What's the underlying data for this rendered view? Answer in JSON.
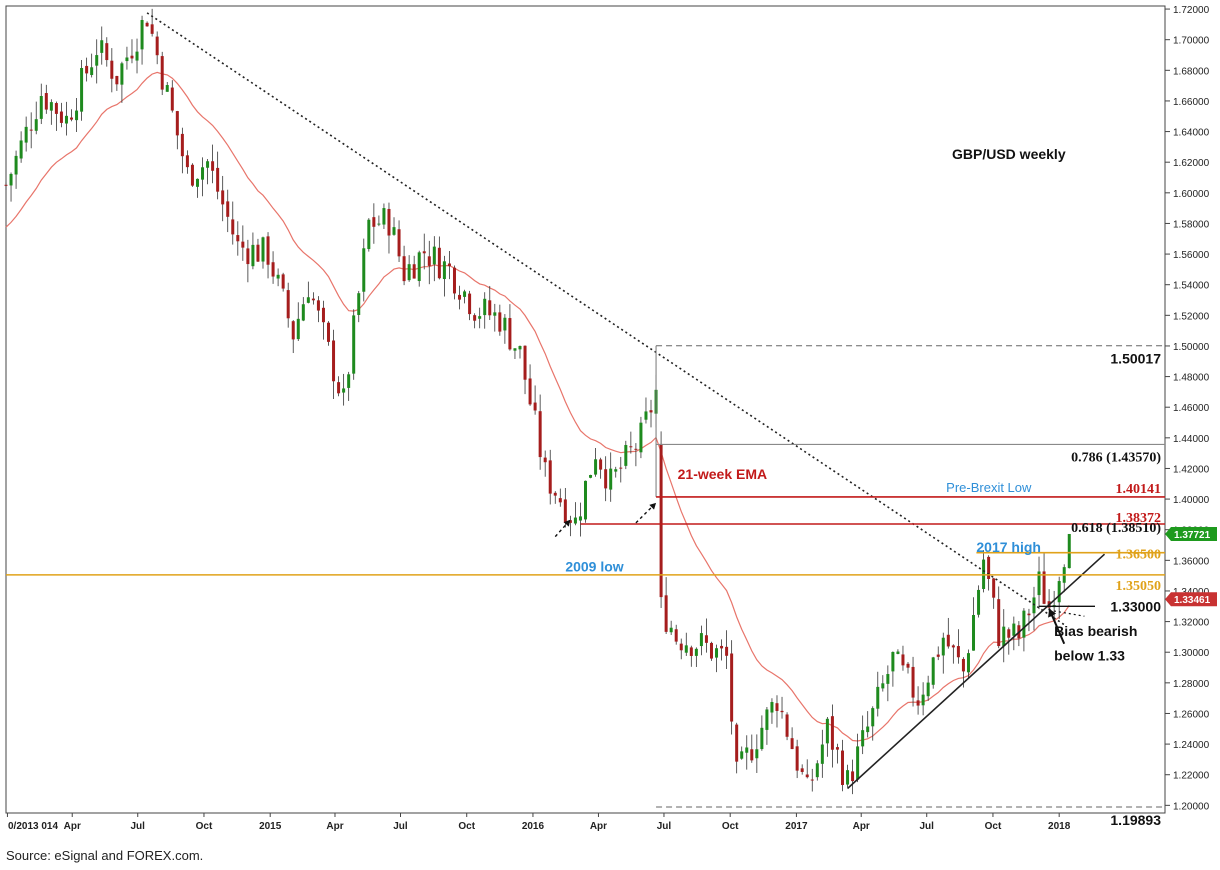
{
  "colors": {
    "up": "#1e8a1e",
    "down": "#a51d1d",
    "ema": "#e8756b",
    "trendline": "#222222",
    "fib_grey": "#8a8a8a",
    "red_level": "#c21a1a",
    "orange_level": "#e0a21a",
    "blue_text": "#2f8fd8",
    "green_badge": "#1e9a1e",
    "red_badge": "#c83232",
    "axis_text": "#222222"
  },
  "chart_data": {
    "type": "candlestick",
    "title": "GBP/USD weekly",
    "xlabel": "",
    "ylabel": "",
    "ylim": [
      1.195,
      1.722
    ],
    "y_ticks": [
      1.72,
      1.7,
      1.68,
      1.66,
      1.64,
      1.62,
      1.6,
      1.58,
      1.56,
      1.54,
      1.52,
      1.5,
      1.48,
      1.46,
      1.44,
      1.42,
      1.4,
      1.38,
      1.36,
      1.34,
      1.32,
      1.3,
      1.28,
      1.26,
      1.24,
      1.22,
      1.2
    ],
    "y_tick_labels": [
      "1.72000",
      "1.70000",
      "1.68000",
      "1.66000",
      "1.64000",
      "1.62000",
      "1.60000",
      "1.58000",
      "1.56000",
      "1.54000",
      "1.52000",
      "1.50000",
      "1.48000",
      "1.46000",
      "1.44000",
      "1.42000",
      "1.40000",
      "1.38000",
      "1.36000",
      "1.34000",
      "1.32000",
      "1.30000",
      "1.28000",
      "1.26000",
      "1.24000",
      "1.22000",
      "1.20000"
    ],
    "x_range": [
      "2013-12-30",
      "2018-05-28"
    ],
    "x_ticks": [
      {
        "label": "0/2013 014",
        "date": "2014-01-01"
      },
      {
        "label": "Apr",
        "date": "2014-04-01"
      },
      {
        "label": "Jul",
        "date": "2014-07-01"
      },
      {
        "label": "Oct",
        "date": "2014-10-01"
      },
      {
        "label": "2015",
        "date": "2015-01-01"
      },
      {
        "label": "Apr",
        "date": "2015-04-01"
      },
      {
        "label": "Jul",
        "date": "2015-07-01"
      },
      {
        "label": "Oct",
        "date": "2015-10-01"
      },
      {
        "label": "2016",
        "date": "2016-01-01"
      },
      {
        "label": "Apr",
        "date": "2016-04-01"
      },
      {
        "label": "Jul",
        "date": "2016-07-01"
      },
      {
        "label": "Oct",
        "date": "2016-10-01"
      },
      {
        "label": "2017",
        "date": "2017-01-01"
      },
      {
        "label": "Apr",
        "date": "2017-04-01"
      },
      {
        "label": "Jul",
        "date": "2017-07-01"
      },
      {
        "label": "Oct",
        "date": "2017-10-01"
      },
      {
        "label": "2018",
        "date": "2018-01-01"
      }
    ],
    "price_path": [
      {
        "date": "2013-12-30",
        "close": 1.605
      },
      {
        "date": "2014-02-17",
        "close": 1.665
      },
      {
        "date": "2014-03-24",
        "close": 1.648
      },
      {
        "date": "2014-05-05",
        "close": 1.695
      },
      {
        "date": "2014-06-02",
        "close": 1.676
      },
      {
        "date": "2014-07-14",
        "close": 1.716
      },
      {
        "date": "2014-09-08",
        "close": 1.612
      },
      {
        "date": "2014-10-06",
        "close": 1.62
      },
      {
        "date": "2014-11-17",
        "close": 1.565
      },
      {
        "date": "2014-12-29",
        "close": 1.56
      },
      {
        "date": "2015-02-02",
        "close": 1.508
      },
      {
        "date": "2015-02-23",
        "close": 1.54
      },
      {
        "date": "2015-04-13",
        "close": 1.463
      },
      {
        "date": "2015-05-18",
        "close": 1.58
      },
      {
        "date": "2015-06-15",
        "close": 1.582
      },
      {
        "date": "2015-07-06",
        "close": 1.548
      },
      {
        "date": "2015-08-03",
        "close": 1.562
      },
      {
        "date": "2015-09-07",
        "close": 1.55
      },
      {
        "date": "2015-10-12",
        "close": 1.525
      },
      {
        "date": "2015-11-16",
        "close": 1.518
      },
      {
        "date": "2015-12-14",
        "close": 1.495
      },
      {
        "date": "2016-01-18",
        "close": 1.416
      },
      {
        "date": "2016-02-29",
        "close": 1.385
      },
      {
        "date": "2016-03-28",
        "close": 1.432
      },
      {
        "date": "2016-04-18",
        "close": 1.41
      },
      {
        "date": "2016-05-30",
        "close": 1.44
      },
      {
        "date": "2016-06-20",
        "close": 1.47
      },
      {
        "date": "2016-06-27",
        "close": 1.33
      },
      {
        "date": "2016-07-18",
        "close": 1.31
      },
      {
        "date": "2016-08-22",
        "close": 1.305
      },
      {
        "date": "2016-09-26",
        "close": 1.296
      },
      {
        "date": "2016-10-10",
        "close": 1.218
      },
      {
        "date": "2016-11-07",
        "close": 1.245
      },
      {
        "date": "2016-12-05",
        "close": 1.27
      },
      {
        "date": "2017-01-16",
        "close": 1.208
      },
      {
        "date": "2017-02-13",
        "close": 1.25
      },
      {
        "date": "2017-03-13",
        "close": 1.215
      },
      {
        "date": "2017-04-10",
        "close": 1.25
      },
      {
        "date": "2017-05-15",
        "close": 1.295
      },
      {
        "date": "2017-06-19",
        "close": 1.27
      },
      {
        "date": "2017-07-24",
        "close": 1.31
      },
      {
        "date": "2017-08-21",
        "close": 1.287
      },
      {
        "date": "2017-09-18",
        "close": 1.361
      },
      {
        "date": "2017-10-09",
        "close": 1.312
      },
      {
        "date": "2017-11-06",
        "close": 1.31
      },
      {
        "date": "2017-12-04",
        "close": 1.345
      },
      {
        "date": "2017-12-18",
        "close": 1.33
      },
      {
        "date": "2018-01-08",
        "close": 1.365
      },
      {
        "date": "2018-01-15",
        "close": 1.377
      }
    ],
    "horizontal_levels": [
      {
        "label": "1.50017",
        "value": 1.50017,
        "style": "dashed-grey"
      },
      {
        "label": "0.786 (1.43570)",
        "value": 1.4357,
        "style": "grey"
      },
      {
        "label": "1.40141",
        "value": 1.40141,
        "style": "red"
      },
      {
        "label": "1.38372",
        "value": 1.38372,
        "style": "red"
      },
      {
        "label": "0.618 (1.38510)",
        "value": 1.3851,
        "style": "text-only"
      },
      {
        "label": "1.36500",
        "value": 1.365,
        "style": "orange"
      },
      {
        "label": "1.35050",
        "value": 1.3505,
        "style": "orange"
      },
      {
        "label": "1.33000",
        "value": 1.33,
        "style": "black"
      },
      {
        "label": "1.19893",
        "value": 1.19893,
        "style": "dashed-grey"
      }
    ],
    "price_badges": [
      {
        "label": "1.37721",
        "value": 1.37721,
        "color": "green"
      },
      {
        "label": "1.33461",
        "value": 1.33461,
        "color": "red"
      }
    ],
    "annotations": [
      {
        "text": "21-week EMA",
        "date": "2016-07-20",
        "value": 1.413,
        "color": "red"
      },
      {
        "text": "Pre-Brexit Low",
        "date": "2017-07-28",
        "value": 1.4045,
        "color": "blue"
      },
      {
        "text": "2017 high",
        "date": "2017-09-08",
        "value": 1.3655,
        "color": "blue"
      },
      {
        "text": "2009 low",
        "date": "2016-02-15",
        "value": 1.3528,
        "color": "blue"
      },
      {
        "text": "Bias bearish",
        "date": "2017-12-25",
        "value": 1.3105,
        "color": "black"
      },
      {
        "text": "below 1.33",
        "date": "2017-12-25",
        "value": 1.2945,
        "color": "black"
      }
    ]
  },
  "source_note": "Source: eSignal and FOREX.com."
}
